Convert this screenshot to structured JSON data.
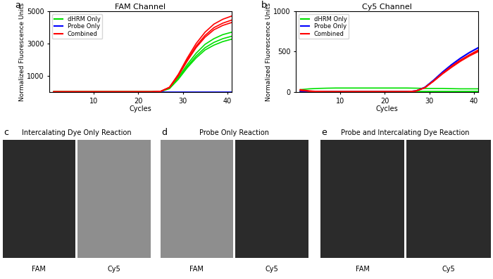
{
  "chart_data": [
    {
      "type": "line",
      "panel": "a",
      "title": "FAM Channel",
      "x_label": "Cycles",
      "y_label": "Normalized Fluorescence Units",
      "x": [
        1,
        3,
        5,
        7,
        9,
        11,
        13,
        15,
        17,
        19,
        21,
        23,
        25,
        27,
        29,
        31,
        33,
        35,
        37,
        39,
        41
      ],
      "xlim": [
        0,
        41
      ],
      "xticks": [
        10,
        20,
        30,
        40
      ],
      "ylim": [
        0,
        5000
      ],
      "yticks": [
        1000,
        3000,
        5000
      ],
      "legend": "upper left",
      "series": [
        {
          "name": "dHRM Only",
          "color": "#00e000",
          "values": [
            [
              20,
              20,
              20,
              20,
              20,
              20,
              20,
              20,
              20,
              20,
              20,
              20,
              40,
              250,
              900,
              1700,
              2400,
              2950,
              3300,
              3550,
              3700
            ],
            [
              20,
              20,
              20,
              20,
              20,
              20,
              20,
              20,
              20,
              20,
              20,
              20,
              35,
              230,
              840,
              1580,
              2230,
              2740,
              3070,
              3300,
              3450
            ],
            [
              20,
              20,
              20,
              20,
              20,
              20,
              20,
              20,
              20,
              20,
              20,
              20,
              30,
              210,
              790,
              1500,
              2110,
              2600,
              2900,
              3120,
              3270
            ]
          ]
        },
        {
          "name": "Probe Only",
          "color": "#0000ff",
          "values": [
            [
              0,
              0,
              0,
              0,
              0,
              0,
              0,
              0,
              0,
              0,
              0,
              0,
              0,
              0,
              0,
              0,
              0,
              0,
              0,
              0,
              0
            ]
          ]
        },
        {
          "name": "Combined",
          "color": "#ff0000",
          "values": [
            [
              20,
              20,
              20,
              20,
              20,
              20,
              20,
              20,
              20,
              20,
              20,
              20,
              45,
              300,
              1100,
              2100,
              3000,
              3700,
              4200,
              4500,
              4700
            ],
            [
              20,
              20,
              20,
              20,
              20,
              20,
              20,
              20,
              20,
              20,
              20,
              20,
              42,
              285,
              1040,
              1990,
              2840,
              3500,
              3980,
              4260,
              4450
            ],
            [
              20,
              20,
              20,
              20,
              20,
              20,
              20,
              20,
              20,
              20,
              20,
              20,
              40,
              275,
              1000,
              1920,
              2750,
              3390,
              3850,
              4120,
              4300
            ]
          ]
        }
      ]
    },
    {
      "type": "line",
      "panel": "b",
      "title": "Cy5 Channel",
      "x_label": "Cycles",
      "y_label": "Normalized Fluorescence Units",
      "x": [
        1,
        3,
        5,
        7,
        9,
        11,
        13,
        15,
        17,
        19,
        21,
        23,
        25,
        27,
        29,
        31,
        33,
        35,
        37,
        39,
        41
      ],
      "xlim": [
        0,
        41
      ],
      "xticks": [
        10,
        20,
        30,
        40
      ],
      "ylim": [
        0,
        1000
      ],
      "yticks": [
        0,
        500,
        1000
      ],
      "legend": "upper left",
      "series": [
        {
          "name": "dHRM Only",
          "color": "#00e000",
          "values": [
            [
              30,
              40,
              45,
              48,
              50,
              50,
              50,
              50,
              50,
              50,
              50,
              50,
              50,
              48,
              45,
              45,
              45,
              42,
              40,
              40,
              40
            ],
            [
              5,
              5,
              5,
              5,
              5,
              5,
              5,
              5,
              5,
              5,
              5,
              5,
              5,
              5,
              5,
              5,
              5,
              5,
              5,
              5,
              5
            ],
            [
              2,
              2,
              2,
              2,
              2,
              2,
              2,
              2,
              2,
              2,
              2,
              2,
              2,
              2,
              2,
              2,
              2,
              2,
              2,
              2,
              2
            ]
          ]
        },
        {
          "name": "Probe Only",
          "color": "#0000ff",
          "values": [
            [
              10,
              8,
              6,
              5,
              5,
              5,
              5,
              5,
              5,
              5,
              5,
              5,
              5,
              15,
              60,
              150,
              250,
              340,
              420,
              490,
              550
            ],
            [
              10,
              8,
              6,
              5,
              5,
              5,
              5,
              5,
              5,
              5,
              5,
              5,
              5,
              14,
              58,
              145,
              245,
              335,
              415,
              485,
              545
            ]
          ]
        },
        {
          "name": "Combined",
          "color": "#ff0000",
          "values": [
            [
              30,
              15,
              8,
              5,
              5,
              5,
              5,
              5,
              5,
              5,
              5,
              5,
              5,
              14,
              55,
              140,
              235,
              320,
              395,
              460,
              520
            ],
            [
              25,
              12,
              7,
              5,
              5,
              5,
              5,
              5,
              5,
              5,
              5,
              5,
              5,
              13,
              52,
              135,
              225,
              305,
              380,
              445,
              500
            ],
            [
              20,
              10,
              6,
              5,
              5,
              5,
              5,
              5,
              5,
              5,
              5,
              5,
              5,
              12,
              54,
              138,
              230,
              312,
              388,
              452,
              510
            ]
          ]
        }
      ]
    }
  ],
  "image_panels": [
    {
      "panel": "c",
      "title": "Intercalating Dye Only Reaction",
      "channels": [
        {
          "name": "FAM",
          "signal": true
        },
        {
          "name": "Cy5",
          "signal": false
        }
      ]
    },
    {
      "panel": "d",
      "title": "Probe Only Reaction",
      "channels": [
        {
          "name": "FAM",
          "signal": false
        },
        {
          "name": "Cy5",
          "signal": true
        }
      ]
    },
    {
      "panel": "e",
      "title": "Probe and Intercalating Dye Reaction",
      "channels": [
        {
          "name": "FAM",
          "signal": true
        },
        {
          "name": "Cy5",
          "signal": true
        }
      ]
    }
  ]
}
